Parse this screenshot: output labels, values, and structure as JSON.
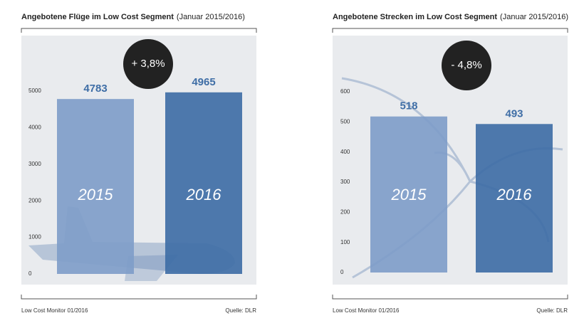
{
  "chart_data": [
    {
      "type": "bar",
      "title": "Angebotene Flüge im Low Cost Segment",
      "subtitle": "(Januar 2015/2016)",
      "annotation": "+ 3,8%",
      "categories": [
        "2015",
        "2016"
      ],
      "values": [
        4783,
        4965
      ],
      "colors": [
        "#7f9dc9",
        "#3f6ea6"
      ],
      "ylim": [
        0,
        5000
      ],
      "yticks": [
        0,
        1000,
        2000,
        3000,
        4000,
        5000
      ],
      "note": "Low Cost Monitor 01/2016",
      "source": "Quelle: DLR"
    },
    {
      "type": "bar",
      "title": "Angebotene Strecken im Low Cost Segment",
      "subtitle": "(Januar 2015/2016)",
      "annotation": "- 4,8%",
      "categories": [
        "2015",
        "2016"
      ],
      "values": [
        518,
        493
      ],
      "colors": [
        "#7f9dc9",
        "#3f6ea6"
      ],
      "ylim": [
        0,
        600
      ],
      "yticks": [
        0,
        100,
        200,
        300,
        400,
        500,
        600
      ],
      "note": "Low Cost Monitor 01/2016",
      "source": "Quelle: DLR"
    }
  ]
}
